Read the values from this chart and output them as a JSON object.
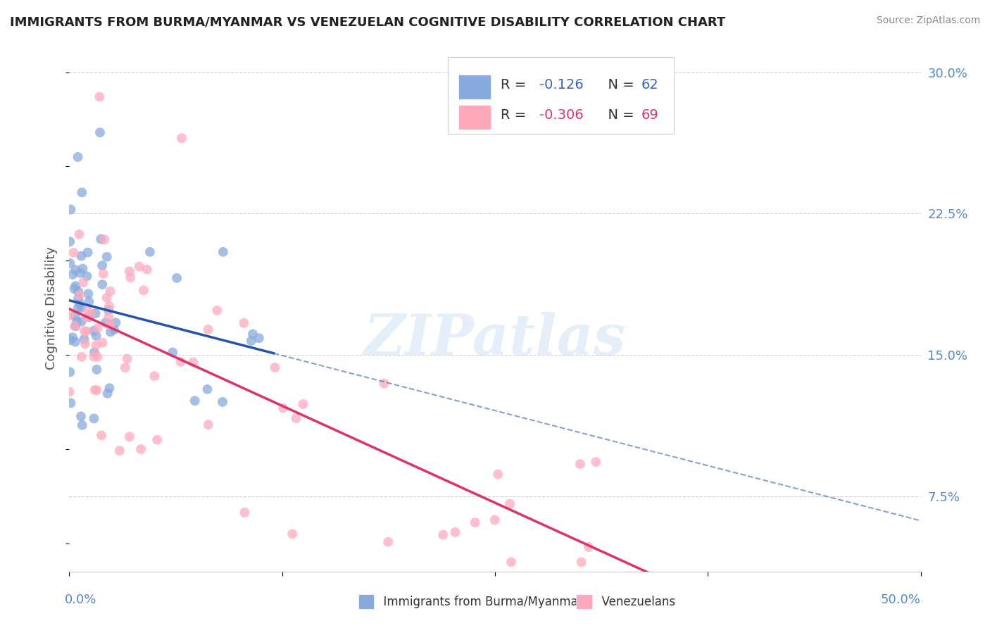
{
  "title": "IMMIGRANTS FROM BURMA/MYANMAR VS VENEZUELAN COGNITIVE DISABILITY CORRELATION CHART",
  "source": "Source: ZipAtlas.com",
  "ylabel": "Cognitive Disability",
  "xlim": [
    0.0,
    0.5
  ],
  "ylim": [
    0.035,
    0.315
  ],
  "yticks": [
    0.075,
    0.15,
    0.225,
    0.3
  ],
  "ytick_labels": [
    "7.5%",
    "15.0%",
    "22.5%",
    "30.0%"
  ],
  "xtick_left": "0.0%",
  "xtick_right": "50.0%",
  "grid_color": "#cccccc",
  "background_color": "#ffffff",
  "blue_color": "#88aadd",
  "pink_color": "#ffaabc",
  "blue_line_color": "#2255aa",
  "pink_line_color": "#dd3366",
  "blue_R": -0.126,
  "blue_N": 62,
  "pink_R": -0.306,
  "pink_N": 69,
  "legend_label_blue": "Immigrants from Burma/Myanmar",
  "legend_label_pink": "Venezuelans",
  "watermark": "ZIPatlas",
  "title_fontsize": 13,
  "source_fontsize": 10,
  "axis_label_fontsize": 13,
  "tick_fontsize": 13
}
